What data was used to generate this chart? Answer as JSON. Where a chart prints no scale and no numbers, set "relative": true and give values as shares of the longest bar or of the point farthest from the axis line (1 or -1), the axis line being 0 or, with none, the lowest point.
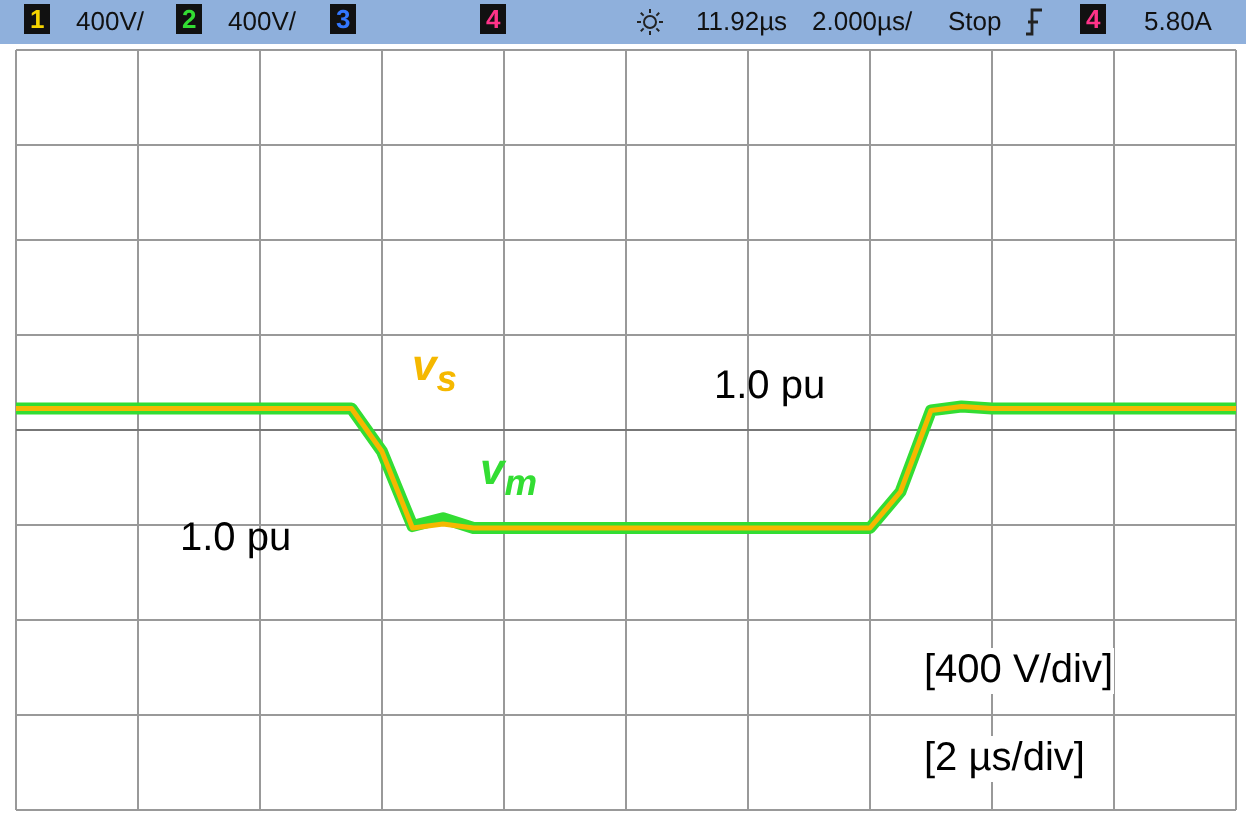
{
  "chart_data": {
    "type": "line",
    "relative": true,
    "categories": [
      null,
      null,
      null,
      null,
      null,
      null,
      null,
      null,
      null,
      null,
      null,
      null,
      null,
      null,
      null,
      null,
      null,
      null,
      null,
      null,
      null,
      null,
      null,
      null,
      null,
      null,
      null,
      null,
      null,
      null,
      null,
      null,
      null,
      null,
      null,
      null,
      null,
      null,
      null,
      null,
      null
    ],
    "series": [
      {
        "name": "v$_{m}$",
        "color": "#33dd33",
        "values": [
          0.22,
          0.22,
          0.22,
          0.22,
          0.22,
          0.22,
          0.22,
          0.22,
          0.22,
          0.22,
          0.22,
          0.22,
          -0.22,
          -0.98,
          -0.9,
          -1,
          -1,
          -1,
          -1,
          -1,
          -1,
          -1,
          -1,
          -1,
          -1,
          -1,
          -1,
          -1,
          -1,
          -0.63,
          0.2,
          0.24,
          0.22,
          0.22,
          0.22,
          0.22,
          0.22,
          0.22,
          0.22,
          0.22,
          0.22
        ]
      },
      {
        "name": "v$_{s}$",
        "color": "#f5b800",
        "values": [
          0.22,
          0.22,
          0.22,
          0.22,
          0.22,
          0.22,
          0.22,
          0.22,
          0.22,
          0.22,
          0.22,
          0.22,
          -0.22,
          -1,
          -0.96,
          -1,
          -1,
          -1,
          -1,
          -1,
          -1,
          -1,
          -1,
          -1,
          -1,
          -1,
          -1,
          -1,
          -1,
          -0.63,
          0.2,
          0.24,
          0.22,
          0.22,
          0.22,
          0.22,
          0.22,
          0.22,
          0.22,
          0.22,
          0.22
        ]
      }
    ],
    "grid": true,
    "marker": "none",
    "line_style": "solid",
    "legend": false,
    "annotations": [
      "1",
      "400V/",
      "2",
      "400V/",
      "3",
      "4",
      "11.92µs",
      "2.000µs/",
      "Stop",
      "4",
      "5.80A",
      "1.0 pu",
      "1.0 pu",
      "[400 V/div]",
      "[2 µs/div]"
    ]
  }
}
